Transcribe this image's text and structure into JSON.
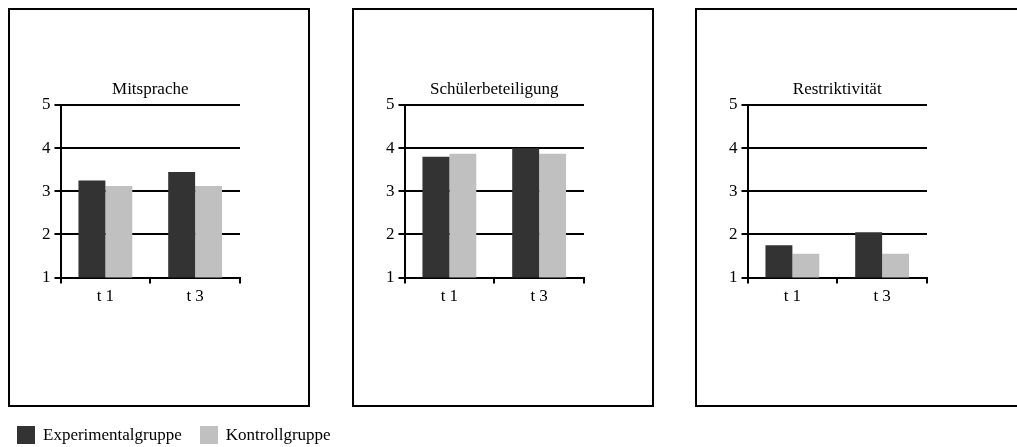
{
  "chart_data": [
    {
      "type": "bar",
      "title": "Mitsprache",
      "categories": [
        "t 1",
        "t 3"
      ],
      "ylim": [
        1,
        5
      ],
      "yticks": [
        1,
        2,
        3,
        4,
        5
      ],
      "grid": "y",
      "legend": "bottom",
      "series": [
        {
          "name": "Experimentalgruppe",
          "color": "#333333",
          "values": [
            3.25,
            3.45
          ]
        },
        {
          "name": "Kontrollgruppe",
          "color": "#c0c0c0",
          "values": [
            3.12,
            3.12
          ]
        }
      ]
    },
    {
      "type": "bar",
      "title": "Schülerbeteiligung",
      "categories": [
        "t 1",
        "t 3"
      ],
      "ylim": [
        1,
        5
      ],
      "yticks": [
        1,
        2,
        3,
        4,
        5
      ],
      "grid": "y",
      "series": [
        {
          "color": "#333333",
          "values": [
            3.8,
            4.0
          ]
        },
        {
          "color": "#c0c0c0",
          "values": [
            3.87,
            3.87
          ]
        }
      ]
    },
    {
      "type": "bar",
      "title": "Restriktivität",
      "categories": [
        "t 1",
        "t 3"
      ],
      "ylim": [
        1,
        5
      ],
      "yticks": [
        1,
        2,
        3,
        4,
        5
      ],
      "grid": "y",
      "series": [
        {
          "color": "#333333",
          "values": [
            1.75,
            2.05
          ]
        },
        {
          "color": "#c0c0c0",
          "values": [
            1.55,
            1.55
          ]
        }
      ]
    }
  ]
}
